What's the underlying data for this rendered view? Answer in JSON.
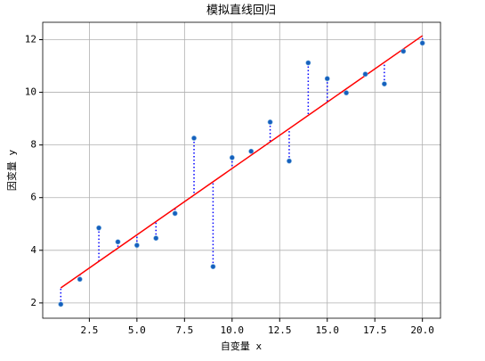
{
  "chart_data": {
    "type": "scatter",
    "title": "模拟直线回归",
    "x_label": "自变量 x",
    "y_label": "因变量 y",
    "x": [
      1,
      2,
      3,
      4,
      5,
      6,
      7,
      8,
      9,
      10,
      11,
      12,
      13,
      14,
      15,
      16,
      17,
      18,
      19,
      20
    ],
    "values": [
      1.95,
      2.9,
      4.85,
      4.32,
      4.19,
      4.46,
      5.4,
      8.26,
      3.38,
      7.52,
      7.76,
      8.87,
      7.39,
      11.12,
      10.52,
      9.98,
      10.69,
      10.32,
      11.56,
      11.87
    ],
    "color": "#1560bd",
    "fit_line": {
      "x": [
        1,
        20
      ],
      "values": [
        2.57,
        12.15
      ],
      "color": "#ff0000"
    },
    "residual_color": "#0000ff",
    "xlim": [
      0.05,
      20.95
    ],
    "ylim": [
      1.42,
      12.66
    ],
    "xticks": [
      {
        "value": 2.5,
        "label": "2.5"
      },
      {
        "value": 5,
        "label": "5.0"
      },
      {
        "value": 7.5,
        "label": "7.5"
      },
      {
        "value": 10,
        "label": "10.0"
      },
      {
        "value": 12.5,
        "label": "12.5"
      },
      {
        "value": 15,
        "label": "15.0"
      },
      {
        "value": 17.5,
        "label": "17.5"
      },
      {
        "value": 20,
        "label": "20.0"
      }
    ],
    "yticks": [
      2,
      4,
      6,
      8,
      10,
      12
    ],
    "grid": true
  }
}
